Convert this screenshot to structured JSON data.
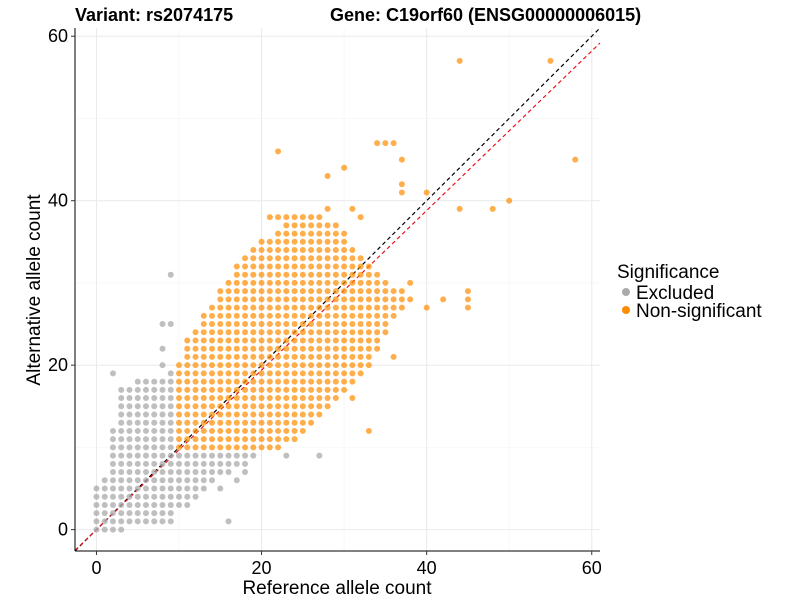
{
  "chart_data": {
    "type": "scatter",
    "title_left": "Variant: rs2074175",
    "title_right": "Gene: C19orf60 (ENSG00000006015)",
    "xlabel": "Reference allele count",
    "ylabel": "Alternative allele count",
    "xlim": [
      -2.6,
      61
    ],
    "ylim": [
      -2.6,
      61
    ],
    "xticks": [
      0,
      20,
      40,
      60
    ],
    "yticks": [
      0,
      20,
      40,
      60
    ],
    "grid": true,
    "legend": {
      "title": "Significance",
      "placement": "right",
      "entries": [
        "Excluded",
        "Non-significant"
      ]
    },
    "colors": {
      "Excluded": "#aaaaaa",
      "Non-significant": "#ff8c00",
      "identity_line": "#000000",
      "fit_line": "#e8141c"
    },
    "reference_lines": [
      {
        "name": "identity",
        "slope": 1.0,
        "intercept": 0,
        "style": "dashed",
        "color": "#000000"
      },
      {
        "name": "fit",
        "slope": 0.97,
        "intercept": 0,
        "style": "dashed",
        "color": "#e8141c"
      }
    ],
    "series": [
      {
        "name": "Excluded",
        "ranges_y_x0_x1": [
          [
            0,
            0,
            3
          ],
          [
            1,
            0,
            9
          ],
          [
            2,
            0,
            9
          ],
          [
            3,
            0,
            11
          ],
          [
            4,
            0,
            12
          ],
          [
            5,
            0,
            13
          ],
          [
            6,
            1,
            14
          ],
          [
            7,
            2,
            16
          ],
          [
            8,
            2,
            18
          ],
          [
            9,
            2,
            19
          ],
          [
            10,
            2,
            9
          ],
          [
            11,
            2,
            9
          ],
          [
            12,
            2,
            9
          ],
          [
            13,
            3,
            9
          ],
          [
            14,
            3,
            9
          ],
          [
            15,
            3,
            9
          ],
          [
            16,
            3,
            9
          ],
          [
            17,
            3,
            9
          ],
          [
            18,
            5,
            9
          ]
        ],
        "points": [
          [
            16,
            1
          ],
          [
            15,
            5
          ],
          [
            17,
            6
          ],
          [
            18,
            7
          ],
          [
            23,
            9
          ],
          [
            27,
            9
          ],
          [
            2,
            19
          ],
          [
            9,
            19
          ],
          [
            8,
            20
          ],
          [
            8,
            22
          ],
          [
            8,
            25
          ],
          [
            9,
            25
          ],
          [
            9,
            31
          ]
        ]
      },
      {
        "name": "Non-significant",
        "ranges_y_x0_x1": [
          [
            10,
            10,
            22
          ],
          [
            11,
            10,
            24
          ],
          [
            12,
            10,
            25
          ],
          [
            13,
            10,
            26
          ],
          [
            14,
            10,
            27
          ],
          [
            15,
            10,
            28
          ],
          [
            16,
            10,
            29
          ],
          [
            17,
            10,
            30
          ],
          [
            18,
            10,
            31
          ],
          [
            19,
            10,
            32
          ],
          [
            20,
            10,
            33
          ],
          [
            21,
            11,
            33
          ],
          [
            22,
            11,
            34
          ],
          [
            23,
            11,
            34
          ],
          [
            24,
            12,
            35
          ],
          [
            25,
            13,
            35
          ],
          [
            26,
            13,
            36
          ],
          [
            27,
            14,
            37
          ],
          [
            28,
            15,
            38
          ],
          [
            29,
            15,
            37
          ],
          [
            30,
            16,
            35
          ],
          [
            31,
            17,
            34
          ],
          [
            32,
            17,
            33
          ],
          [
            33,
            18,
            32
          ],
          [
            34,
            19,
            31
          ],
          [
            35,
            20,
            30
          ],
          [
            36,
            22,
            30
          ],
          [
            37,
            23,
            29
          ],
          [
            38,
            21,
            27
          ]
        ],
        "points": [
          [
            33,
            12
          ],
          [
            31,
            16
          ],
          [
            36,
            21
          ],
          [
            40,
            27
          ],
          [
            42,
            28
          ],
          [
            45,
            28
          ],
          [
            38,
            30
          ],
          [
            32,
            38
          ],
          [
            28,
            39
          ],
          [
            31,
            39
          ],
          [
            44,
            39
          ],
          [
            50,
            40
          ],
          [
            48,
            39
          ],
          [
            37,
            41
          ],
          [
            40,
            41
          ],
          [
            37,
            42
          ],
          [
            28,
            43
          ],
          [
            30,
            44
          ],
          [
            37,
            45
          ],
          [
            58,
            45
          ],
          [
            22,
            46
          ],
          [
            34,
            47
          ],
          [
            35,
            47
          ],
          [
            36,
            47
          ],
          [
            44,
            57
          ],
          [
            55,
            57
          ],
          [
            45,
            27
          ],
          [
            45,
            29
          ]
        ]
      }
    ]
  }
}
